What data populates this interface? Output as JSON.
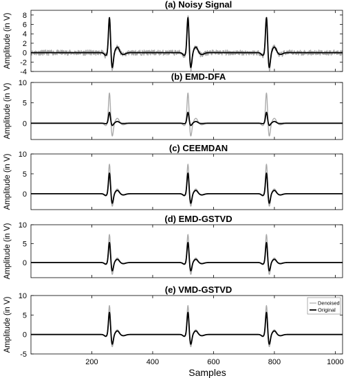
{
  "figure": {
    "xlabel": "Samples",
    "ylabel": "Amplitude (in V)",
    "xlim": [
      0,
      1024
    ],
    "xticks": [
      200,
      400,
      600,
      800,
      1000
    ],
    "legend": {
      "placement": "top-right of panel (e)",
      "entries": [
        "Denoised",
        "Original"
      ]
    }
  },
  "colors": {
    "denoised": "#aaaaaa",
    "original": "#000000",
    "axes": "#000000"
  },
  "chart_data": [
    {
      "type": "line",
      "title": "(a) Noisy Signal",
      "xlabel": "",
      "ylabel": "Amplitude (in V)",
      "ylim": [
        -4,
        9
      ],
      "yticks": [
        -4,
        -2,
        0,
        2,
        4,
        6,
        8
      ],
      "xlim": [
        0,
        1024
      ],
      "series": [
        {
          "name": "Denoised",
          "peaks_x": [
            258,
            516,
            774
          ],
          "peak": 8.0,
          "trough": -3.8,
          "noise": 0.35
        },
        {
          "name": "Original",
          "peaks_x": [
            258,
            516,
            774
          ],
          "peak": 7.6,
          "trough": -3.3,
          "noise": 0
        }
      ]
    },
    {
      "type": "line",
      "title": "(b) EMD-DFA",
      "xlabel": "",
      "ylabel": "Amplitude (in V)",
      "ylim": [
        -4,
        10
      ],
      "yticks": [
        0,
        5,
        10
      ],
      "xlim": [
        0,
        1024
      ],
      "series": [
        {
          "name": "Denoised",
          "peaks_x": [
            258,
            516,
            774
          ],
          "peak": 7.6,
          "trough": -3.3,
          "noise": 0
        },
        {
          "name": "Original",
          "peaks_x": [
            258,
            516,
            774
          ],
          "peak": 2.7,
          "trough": -0.6,
          "noise": 0
        }
      ]
    },
    {
      "type": "line",
      "title": "(c) CEEMDAN",
      "xlabel": "",
      "ylabel": "Amplitude (in V)",
      "ylim": [
        -4,
        10
      ],
      "yticks": [
        0,
        5,
        10
      ],
      "xlim": [
        0,
        1024
      ],
      "series": [
        {
          "name": "Denoised",
          "peaks_x": [
            258,
            516,
            774
          ],
          "peak": 7.6,
          "trough": -3.3,
          "noise": 0
        },
        {
          "name": "Original",
          "peaks_x": [
            258,
            516,
            774
          ],
          "peak": 5.3,
          "trough": -2.5,
          "noise": 0
        }
      ]
    },
    {
      "type": "line",
      "title": "(d) EMD-GSTVD",
      "xlabel": "",
      "ylabel": "Amplitude (in V)",
      "ylim": [
        -4,
        10
      ],
      "yticks": [
        0,
        5,
        10
      ],
      "xlim": [
        0,
        1024
      ],
      "series": [
        {
          "name": "Denoised",
          "peaks_x": [
            258,
            516,
            774
          ],
          "peak": 7.6,
          "trough": -3.3,
          "noise": 0
        },
        {
          "name": "Original",
          "peaks_x": [
            258,
            516,
            774
          ],
          "peak": 5.4,
          "trough": -2.3,
          "noise": 0
        }
      ]
    },
    {
      "type": "line",
      "title": "(e) VMD-GSTVD",
      "xlabel": "Samples",
      "ylabel": "Amplitude (in V)",
      "ylim": [
        -5,
        10
      ],
      "yticks": [
        -5,
        0,
        5,
        10
      ],
      "xlim": [
        0,
        1024
      ],
      "series": [
        {
          "name": "Denoised",
          "peaks_x": [
            258,
            516,
            774
          ],
          "peak": 7.6,
          "trough": -3.3,
          "noise": 0
        },
        {
          "name": "Original",
          "peaks_x": [
            258,
            516,
            774
          ],
          "peak": 5.8,
          "trough": -2.6,
          "noise": 0
        }
      ]
    }
  ]
}
